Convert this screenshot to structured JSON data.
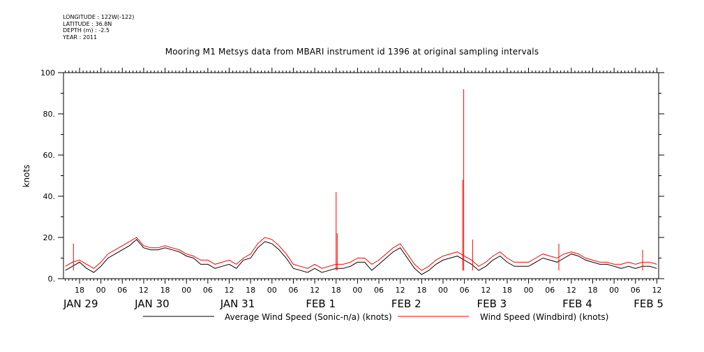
{
  "header_info": [
    "LONGITUDE : 122W(-122)",
    "LATITUDE : 36.8N",
    "DEPTH (m) : -2.5",
    "YEAR : 2011"
  ],
  "chart_data": {
    "type": "line",
    "title": "Mooring M1 Metsys data from MBARI instrument id 1396 at original sampling intervals",
    "ylabel": "knots",
    "xlabel": "",
    "ylim": [
      0,
      100
    ],
    "xlim_hours": [
      -10.5,
      156.5
    ],
    "y_ticks": [
      "0.",
      "20.",
      "40.",
      "60.",
      "80.",
      "100"
    ],
    "x_hour_ticks": [
      "18",
      "00",
      "06",
      "12",
      "18",
      "00",
      "06",
      "12",
      "18",
      "00",
      "06",
      "12",
      "18",
      "00",
      "06",
      "12",
      "18",
      "00",
      "06",
      "12",
      "18",
      "00",
      "06",
      "12",
      "18",
      "00",
      "06",
      "12"
    ],
    "date_labels": [
      "JAN 29",
      "JAN 30",
      "JAN 31",
      "FEB  1",
      "FEB  2",
      "FEB  3",
      "FEB  4",
      "FEB  5"
    ],
    "series": [
      {
        "name": "Average Wind Speed (Sonic-n/a) (knots)",
        "color": "#000000",
        "x_hours": [
          -10,
          -8,
          -6,
          -4,
          -2,
          0,
          2,
          4,
          6,
          8,
          10,
          12,
          14,
          16,
          18,
          20,
          22,
          24,
          26,
          28,
          30,
          32,
          34,
          36,
          38,
          40,
          42,
          44,
          46,
          48,
          50,
          52,
          54,
          56,
          58,
          60,
          62,
          64,
          66,
          68,
          70,
          72,
          74,
          76,
          78,
          80,
          82,
          84,
          86,
          88,
          90,
          92,
          94,
          96,
          98,
          100,
          102,
          104,
          106,
          108,
          110,
          112,
          114,
          116,
          118,
          120,
          122,
          124,
          126,
          128,
          130,
          132,
          134,
          136,
          138,
          140,
          142,
          144,
          146,
          148,
          150,
          152,
          154,
          156
        ],
        "values": [
          4,
          6,
          8,
          5,
          3,
          6,
          10,
          12,
          14,
          16,
          19,
          15,
          14,
          14,
          15,
          14,
          13,
          11,
          10,
          7,
          7,
          5,
          6,
          7,
          5,
          9,
          10,
          15,
          18,
          17,
          14,
          10,
          5,
          4,
          3,
          5,
          3,
          4,
          5,
          5,
          6,
          8,
          8,
          4,
          7,
          10,
          13,
          15,
          10,
          5,
          2,
          4,
          7,
          9,
          10,
          11,
          9,
          7,
          4,
          6,
          9,
          11,
          8,
          6,
          6,
          6,
          8,
          10,
          9,
          8,
          10,
          12,
          11,
          9,
          8,
          7,
          7,
          6,
          5,
          6,
          5,
          6,
          6,
          5
        ]
      },
      {
        "name": "Wind Speed (Windbird) (knots)",
        "color": "#ff0000",
        "x_hours": [
          -10,
          -8,
          -6,
          -4,
          -2,
          0,
          2,
          4,
          6,
          8,
          10,
          12,
          14,
          16,
          18,
          20,
          22,
          24,
          26,
          28,
          30,
          32,
          34,
          36,
          38,
          40,
          42,
          44,
          46,
          48,
          50,
          52,
          54,
          56,
          58,
          60,
          62,
          64,
          66,
          68,
          70,
          72,
          74,
          76,
          78,
          80,
          82,
          84,
          86,
          88,
          90,
          92,
          94,
          96,
          98,
          100,
          102,
          104,
          106,
          108,
          110,
          112,
          114,
          116,
          118,
          120,
          122,
          124,
          126,
          128,
          130,
          132,
          134,
          136,
          138,
          140,
          142,
          144,
          146,
          148,
          150,
          152,
          154,
          156
        ],
        "values": [
          6,
          8,
          9,
          7,
          5,
          8,
          12,
          14,
          16,
          18,
          20,
          16,
          15,
          15,
          16,
          15,
          14,
          12,
          11,
          9,
          9,
          7,
          8,
          9,
          7,
          10,
          12,
          17,
          20,
          19,
          16,
          12,
          7,
          6,
          5,
          7,
          5,
          6,
          7,
          7,
          8,
          10,
          10,
          7,
          9,
          12,
          15,
          17,
          12,
          7,
          4,
          6,
          9,
          11,
          12,
          13,
          11,
          9,
          6,
          8,
          11,
          13,
          10,
          8,
          8,
          8,
          10,
          12,
          11,
          10,
          12,
          13,
          12,
          10,
          9,
          8,
          8,
          7,
          7,
          8,
          7,
          8,
          8,
          7
        ],
        "spikes": [
          {
            "x_hours": -7.7,
            "value": 17
          },
          {
            "x_hours": 66.0,
            "value": 42
          },
          {
            "x_hours": 66.3,
            "value": 22
          },
          {
            "x_hours": 101.5,
            "value": 48
          },
          {
            "x_hours": 101.8,
            "value": 92
          },
          {
            "x_hours": 104.3,
            "value": 19
          },
          {
            "x_hours": 128.5,
            "value": 17
          },
          {
            "x_hours": 152.0,
            "value": 14
          }
        ]
      }
    ],
    "legend_placement": "bottom"
  }
}
